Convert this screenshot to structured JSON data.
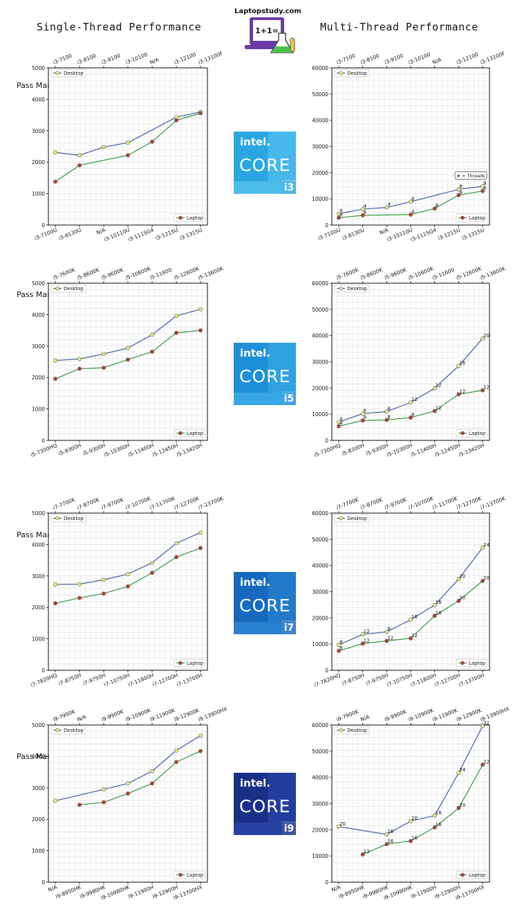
{
  "brand": "Laptopstudy.com",
  "logo_text": "1+1=",
  "titles": {
    "single": "Single-Thread Performance",
    "multi": "Multi-Thread Performance"
  },
  "ylabel": "Pass Mark  Score",
  "badge": {
    "word1": "intel.",
    "word2": "CORE"
  },
  "threads_note": "# = Threads",
  "colors": {
    "desktop_line": "#3a5ba8",
    "desktop_marker": "#f0f06a",
    "laptop_line": "#2a9a3c",
    "laptop_marker": "#c8372a",
    "grid": "#dddddd"
  },
  "chart_data": [
    {
      "type": "line",
      "tier": "i3",
      "kind": "single",
      "ylim": [
        0,
        5000
      ],
      "yticks": [
        0,
        1000,
        2000,
        3000,
        4000,
        5000
      ],
      "desktop_labels": [
        "i3-7100",
        "i3-8100",
        "i3-9100",
        "i3-10100",
        "N/A",
        "i3-12100",
        "i3-13100F"
      ],
      "laptop_labels": [
        "i3-7100U",
        "i3-8130U",
        "N/A",
        "i3-10110U",
        "i3-1115G4",
        "i3-1215U",
        "i3-1315U"
      ],
      "series": [
        {
          "name": "Desktop",
          "values": [
            2310,
            2220,
            2480,
            2620,
            null,
            3430,
            3600
          ]
        },
        {
          "name": "Laptop",
          "values": [
            1380,
            1900,
            null,
            2220,
            2650,
            3330,
            3560
          ]
        }
      ]
    },
    {
      "type": "line",
      "tier": "i3",
      "kind": "multi",
      "ylim": [
        0,
        60000
      ],
      "yticks": [
        0,
        10000,
        20000,
        30000,
        40000,
        50000,
        60000
      ],
      "desktop_labels": [
        "i3-7100",
        "i3-8100",
        "i3-9100",
        "i3-10100",
        "N/A",
        "i3-12100",
        "i3-13100F"
      ],
      "laptop_labels": [
        "i3-7100U",
        "i3-8130U",
        "N/A",
        "i3-10110U",
        "i3-1115G4",
        "i3-1215U",
        "i3-1315U"
      ],
      "series": [
        {
          "name": "Desktop",
          "values": [
            4300,
            6100,
            6700,
            8900,
            null,
            13600,
            14800
          ],
          "threads": [
            4,
            4,
            4,
            8,
            null,
            8,
            8
          ]
        },
        {
          "name": "Laptop",
          "values": [
            2800,
            3700,
            null,
            4000,
            6300,
            11400,
            13000
          ],
          "threads": [
            4,
            8,
            null,
            4,
            8,
            8,
            8
          ]
        }
      ]
    },
    {
      "type": "line",
      "tier": "i5",
      "kind": "single",
      "ylim": [
        0,
        5000
      ],
      "yticks": [
        0,
        1000,
        2000,
        3000,
        4000,
        5000
      ],
      "desktop_labels": [
        "i5-7600K",
        "i5-8600K",
        "i5-9600K",
        "i5-10600K",
        "i5-11600",
        "i5-12600K",
        "i5-13600K"
      ],
      "laptop_labels": [
        "i5-7300HQ",
        "i5-8300H",
        "i5-9300H",
        "i5-10300H",
        "i5-11400H",
        "i5-12450H",
        "i5-13420H"
      ],
      "series": [
        {
          "name": "Desktop",
          "values": [
            2540,
            2590,
            2750,
            2940,
            3360,
            3960,
            4170
          ]
        },
        {
          "name": "Laptop",
          "values": [
            1960,
            2280,
            2310,
            2570,
            2820,
            3420,
            3500
          ]
        }
      ]
    },
    {
      "type": "line",
      "tier": "i5",
      "kind": "multi",
      "ylim": [
        0,
        60000
      ],
      "yticks": [
        0,
        10000,
        20000,
        30000,
        40000,
        50000,
        60000
      ],
      "desktop_labels": [
        "i5-7600K",
        "i5-8600K",
        "i5-9600K",
        "i5-10600K",
        "i5-11600",
        "i5-12600K",
        "i5-13600K"
      ],
      "laptop_labels": [
        "i5-7300HQ",
        "i5-8300H",
        "i5-9300H",
        "i5-10300H",
        "i5-11400H",
        "i5-12450H",
        "i5-13420H"
      ],
      "series": [
        {
          "name": "Desktop",
          "values": [
            7000,
            10200,
            11000,
            14500,
            19900,
            28400,
            38900
          ],
          "threads": [
            4,
            6,
            6,
            12,
            12,
            16,
            20
          ]
        },
        {
          "name": "Laptop",
          "values": [
            5400,
            7600,
            7800,
            8700,
            11200,
            17600,
            19100
          ],
          "threads": [
            4,
            8,
            8,
            8,
            12,
            12,
            12
          ]
        }
      ]
    },
    {
      "type": "line",
      "tier": "i7",
      "kind": "single",
      "ylim": [
        0,
        5000
      ],
      "yticks": [
        0,
        1000,
        2000,
        3000,
        4000,
        5000
      ],
      "desktop_labels": [
        "i7-7700K",
        "i7-8700K",
        "i7-9700K",
        "i7-10700K",
        "i7-11700K",
        "i7-12700K",
        "i7-13700K"
      ],
      "laptop_labels": [
        "i7-7820HQ",
        "i7-8750H",
        "i7-9750H",
        "i7-10750H",
        "i7-11800H",
        "i7-12700H",
        "i7-13700H"
      ],
      "series": [
        {
          "name": "Desktop",
          "values": [
            2730,
            2740,
            2880,
            3060,
            3420,
            4040,
            4380
          ]
        },
        {
          "name": "Laptop",
          "values": [
            2130,
            2300,
            2440,
            2670,
            3100,
            3600,
            3890
          ]
        }
      ]
    },
    {
      "type": "line",
      "tier": "i7",
      "kind": "multi",
      "ylim": [
        0,
        60000
      ],
      "yticks": [
        0,
        10000,
        20000,
        30000,
        40000,
        50000,
        60000
      ],
      "desktop_labels": [
        "i7-7700K",
        "i7-8700K",
        "i7-9700K",
        "i7-10700K",
        "i7-11700K",
        "i7-12700K",
        "i7-13700K"
      ],
      "laptop_labels": [
        "i7-7820HQ",
        "i7-8750H",
        "i7-9750H",
        "i7-10750H",
        "i7-11800H",
        "i7-12700H",
        "i7-13700H"
      ],
      "series": [
        {
          "name": "Desktop",
          "values": [
            9700,
            13700,
            14700,
            19300,
            24900,
            34800,
            46800
          ],
          "threads": [
            8,
            12,
            8,
            16,
            16,
            20,
            24
          ]
        },
        {
          "name": "Laptop",
          "values": [
            7400,
            10200,
            11200,
            12200,
            20800,
            26500,
            34100
          ],
          "threads": [
            8,
            12,
            12,
            12,
            16,
            20,
            20
          ]
        }
      ]
    },
    {
      "type": "line",
      "tier": "i9",
      "kind": "single",
      "ylim": [
        0,
        5000
      ],
      "yticks": [
        0,
        1000,
        2000,
        3000,
        4000,
        5000
      ],
      "desktop_labels": [
        "i9-7900K",
        "N/A",
        "i9-9900K",
        "i9-10900K",
        "i9-11900K",
        "i9-12900K",
        "i9-13900HX"
      ],
      "laptop_labels": [
        "N/A",
        "i9-8950HK",
        "i9-9980HK",
        "i9-10980HK",
        "i9-11900H",
        "i9-12900H",
        "i9-13700HX"
      ],
      "series": [
        {
          "name": "Desktop",
          "values": [
            2590,
            null,
            2950,
            3140,
            3530,
            4190,
            4660
          ]
        },
        {
          "name": "Laptop",
          "values": [
            null,
            2460,
            2540,
            2820,
            3140,
            3820,
            4170
          ]
        }
      ]
    },
    {
      "type": "line",
      "tier": "i9",
      "kind": "multi",
      "ylim": [
        0,
        60000
      ],
      "yticks": [
        0,
        10000,
        20000,
        30000,
        40000,
        50000,
        60000
      ],
      "desktop_labels": [
        "i9-7900K",
        "N/A",
        "i9-9900K",
        "i9-10900K",
        "i9-11900K",
        "i9-12900K",
        "i9-13900HX"
      ],
      "laptop_labels": [
        "N/A",
        "i9-8950HK",
        "i9-9980HK",
        "i9-10980HK",
        "i9-11900H",
        "i9-12900H",
        "i9-13700HX"
      ],
      "series": [
        {
          "name": "Desktop",
          "values": [
            21200,
            null,
            18200,
            23300,
            25400,
            41700,
            59600
          ],
          "threads": [
            20,
            null,
            16,
            20,
            16,
            24,
            32
          ]
        },
        {
          "name": "Laptop",
          "values": [
            null,
            10600,
            14500,
            15700,
            20900,
            28300,
            44800
          ],
          "threads": [
            null,
            12,
            16,
            16,
            16,
            20,
            22
          ]
        }
      ]
    }
  ]
}
